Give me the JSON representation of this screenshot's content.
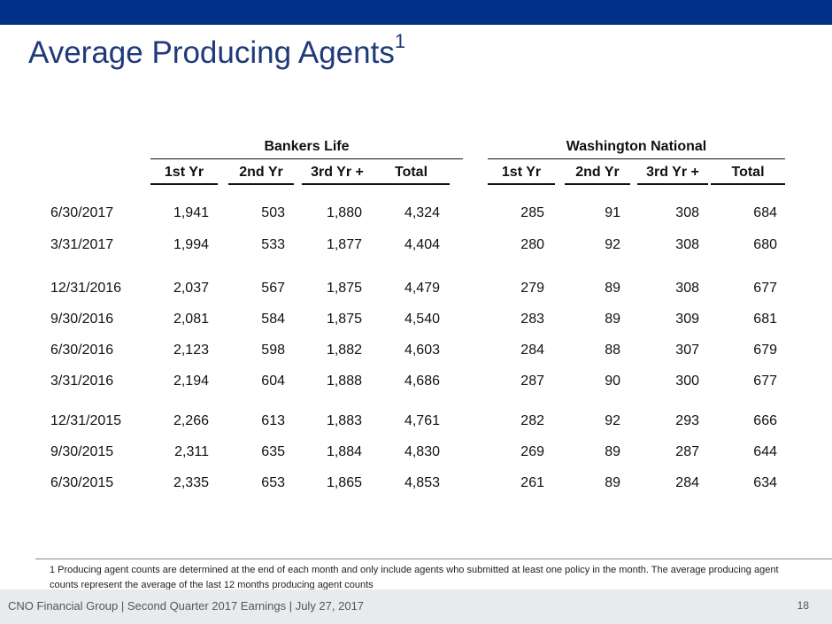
{
  "header": {
    "title": "Average Producing Agents",
    "title_superscript": "1"
  },
  "table": {
    "groups": [
      "Bankers Life",
      "Washington National"
    ],
    "columns": [
      "1st Yr",
      "2nd Yr",
      "3rd Yr +",
      "Total",
      "1st Yr",
      "2nd Yr",
      "3rd Yr +",
      "Total"
    ],
    "rows": [
      {
        "date": "6/30/2017",
        "values": [
          "1,941",
          "503",
          "1,880",
          "4,324",
          "285",
          "91",
          "308",
          "684"
        ]
      },
      {
        "date": "3/31/2017",
        "values": [
          "1,994",
          "533",
          "1,877",
          "4,404",
          "280",
          "92",
          "308",
          "680"
        ]
      },
      {
        "date": "12/31/2016",
        "values": [
          "2,037",
          "567",
          "1,875",
          "4,479",
          "279",
          "89",
          "308",
          "677"
        ]
      },
      {
        "date": "9/30/2016",
        "values": [
          "2,081",
          "584",
          "1,875",
          "4,540",
          "283",
          "89",
          "309",
          "681"
        ]
      },
      {
        "date": "6/30/2016",
        "values": [
          "2,123",
          "598",
          "1,882",
          "4,603",
          "284",
          "88",
          "307",
          "679"
        ]
      },
      {
        "date": "3/31/2016",
        "values": [
          "2,194",
          "604",
          "1,888",
          "4,686",
          "287",
          "90",
          "300",
          "677"
        ]
      },
      {
        "date": "12/31/2015",
        "values": [
          "2,266",
          "613",
          "1,883",
          "4,761",
          "282",
          "92",
          "293",
          "666"
        ]
      },
      {
        "date": "9/30/2015",
        "values": [
          "2,311",
          "635",
          "1,884",
          "4,830",
          "269",
          "89",
          "287",
          "644"
        ]
      },
      {
        "date": "6/30/2015",
        "values": [
          "2,335",
          "653",
          "1,865",
          "4,853",
          "261",
          "89",
          "284",
          "634"
        ]
      }
    ]
  },
  "footnote": "1  Producing agent counts are determined at the end of each month and only include agents who submitted at least one policy in the month.  The average producing agent counts represent the average of the last 12 months producing agent counts",
  "footer": {
    "text": "CNO Financial Group | Second Quarter 2017 Earnings | July 27, 2017",
    "page_number": "18"
  },
  "colors": {
    "top_bar": "#003087",
    "title": "#1f3a7a",
    "footer_band": "#e8eaee"
  }
}
